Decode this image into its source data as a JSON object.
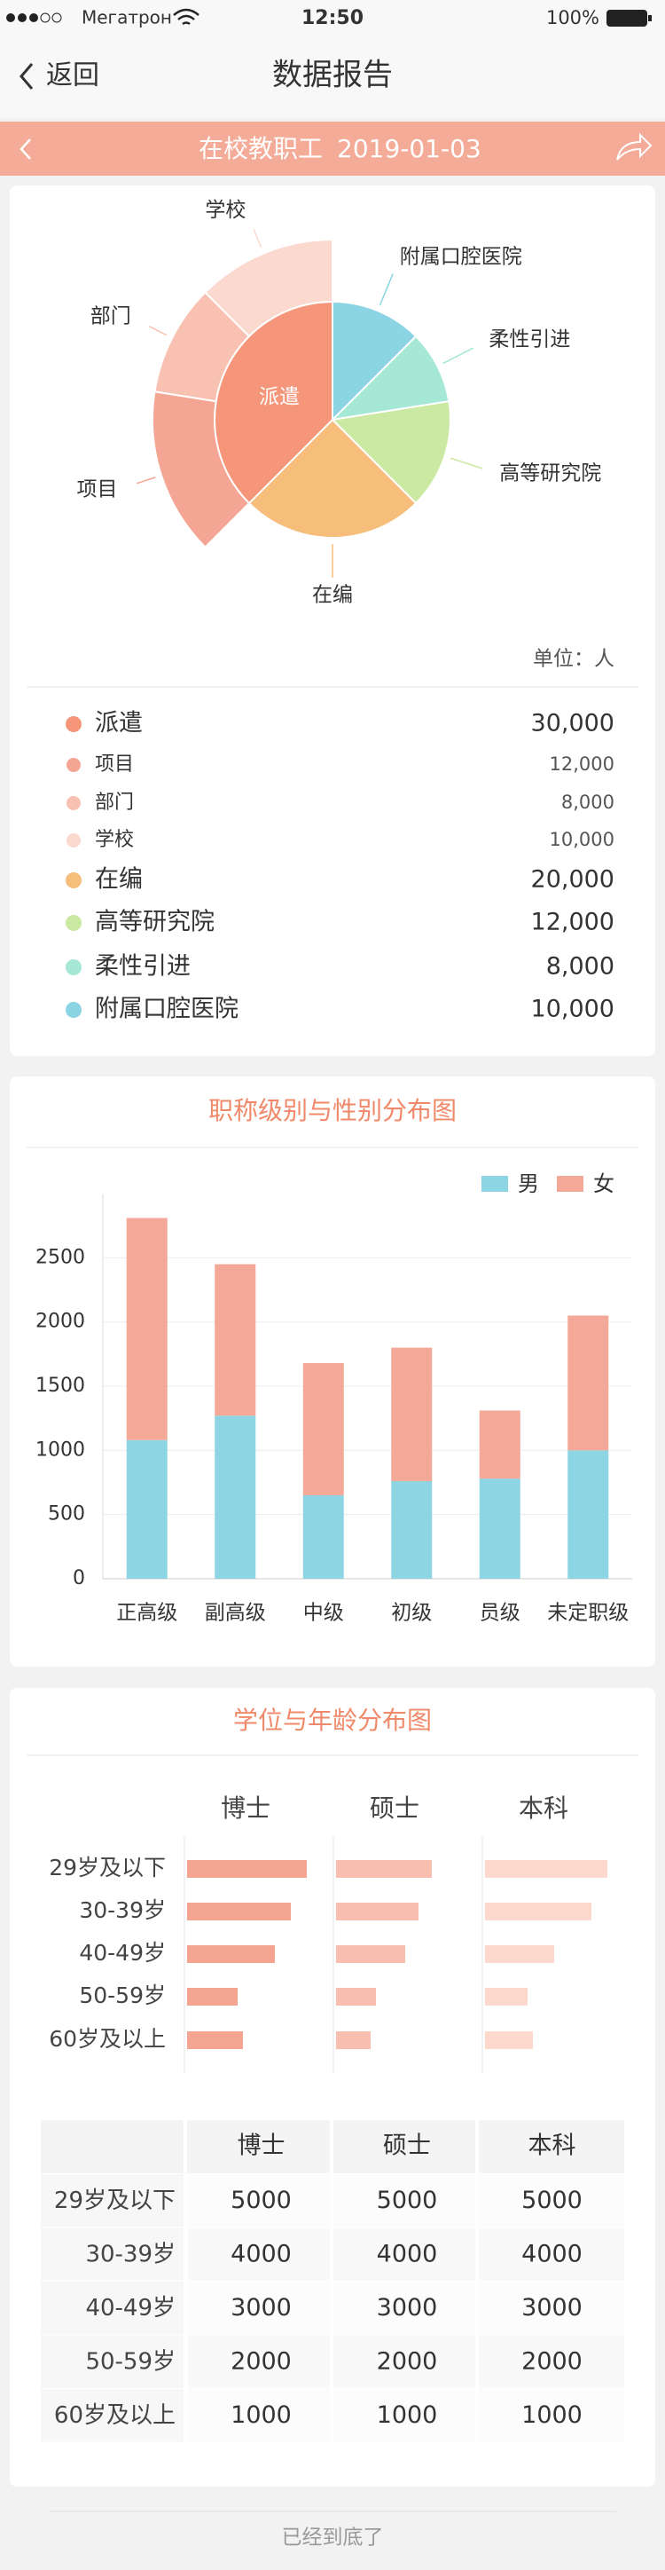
{
  "status_bar": {
    "carrier": "Мегатрон",
    "time": "12:50",
    "battery": "100%"
  },
  "nav": {
    "back": "返回",
    "title": "数据报告"
  },
  "banner": {
    "title": "在校教职工",
    "date": "2019-01-03"
  },
  "chart_data": [
    {
      "type": "pie",
      "unit_label": "单位：人",
      "inner": {
        "names": [
          "派遣",
          "在编",
          "高等研究院",
          "柔性引进",
          "附属口腔医院"
        ],
        "values": [
          30000,
          20000,
          12000,
          8000,
          10000
        ],
        "value_labels": [
          "30,000",
          "20,000",
          "12,000",
          "8,000",
          "10,000"
        ],
        "colors": [
          "#f5957a",
          "#f6bd7b",
          "#cbe9a2",
          "#a5e8d6",
          "#8ad4e3"
        ]
      },
      "outer": {
        "names": [
          "项目",
          "部门",
          "学校"
        ],
        "values": [
          12000,
          8000,
          10000
        ],
        "value_labels": [
          "12,000",
          "8,000",
          "10,000"
        ],
        "colors": [
          "#f4a593",
          "#f8c1b1",
          "#fcd9cf"
        ]
      }
    },
    {
      "type": "bar",
      "stacked": true,
      "title": "职称级别与性别分布图",
      "categories": [
        "正高级",
        "副高级",
        "中级",
        "初级",
        "员级",
        "未定职级"
      ],
      "series": [
        {
          "name": "男",
          "color": "#8dd5e3",
          "values": [
            1080,
            1270,
            650,
            760,
            780,
            1000
          ]
        },
        {
          "name": "女",
          "color": "#f4a898",
          "values": [
            1730,
            1180,
            1030,
            1040,
            530,
            1050
          ]
        }
      ],
      "ylim": [
        0,
        3000
      ],
      "yticks": [
        0,
        500,
        1000,
        1500,
        2000,
        2500
      ],
      "grid": true,
      "legend": "top-right"
    },
    {
      "type": "hbar-panels",
      "title": "学位与年龄分布图",
      "categories": [
        "29岁及以下",
        "30-39岁",
        "40-49岁",
        "50-59岁",
        "60岁及以上"
      ],
      "series": [
        {
          "name": "博士",
          "color": "#f4a592",
          "values": [
            4500,
            3900,
            3300,
            1900,
            2100
          ]
        },
        {
          "name": "硕士",
          "color": "#f8bfb0",
          "values": [
            3600,
            3100,
            2600,
            1500,
            1300
          ]
        },
        {
          "name": "本科",
          "color": "#fcd8cd",
          "values": [
            4600,
            4000,
            2600,
            1600,
            1800
          ]
        }
      ],
      "xlim": [
        0,
        5000
      ]
    }
  ],
  "table": {
    "columns": [
      "博士",
      "硕士",
      "本科"
    ],
    "rows": [
      [
        "29岁及以下",
        5000,
        5000,
        5000
      ],
      [
        "30-39岁",
        4000,
        4000,
        4000
      ],
      [
        "40-49岁",
        3000,
        3000,
        3000
      ],
      [
        "50-59岁",
        2000,
        2000,
        2000
      ],
      [
        "60岁及以上",
        1000,
        1000,
        1000
      ]
    ]
  },
  "footer": "已经到底了"
}
